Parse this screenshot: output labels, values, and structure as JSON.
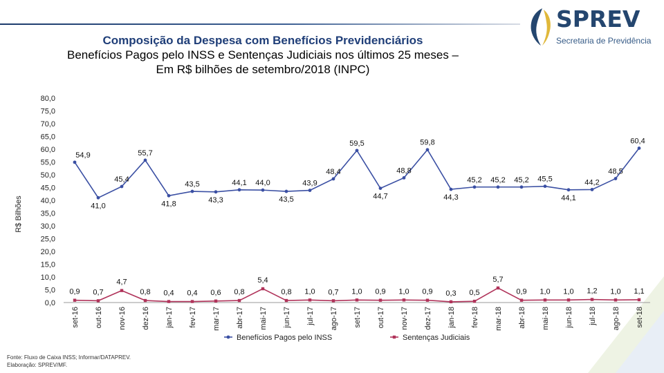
{
  "header": {
    "title_line1": "Composição da Despesa com Benefícios Previdenciários",
    "title_line2": "Benefícios Pagos pelo INSS e Sentenças Judiciais nos últimos 25 meses –",
    "title_line3": "Em R$ bilhões de setembro/2018 (INPC)"
  },
  "logo": {
    "wordmark": "SPREV",
    "subtitle": "Secretaria de Previdência"
  },
  "footer": {
    "source": "Fonte: Fluxo de Caixa INSS; Informar/DATAPREV.",
    "elaboration": "Elaboração: SPREV/MF."
  },
  "colors": {
    "series_inss": "#3a4fa3",
    "series_judicial": "#b0335a",
    "logo_dark": "#24466f",
    "logo_gold": "#e0b83a"
  },
  "chart_data": {
    "type": "line",
    "title": "",
    "ylabel": "R$ Bilhões",
    "xlabel": "",
    "ylim": [
      0,
      80
    ],
    "yticks": [
      "0,0",
      "5,0",
      "10,0",
      "15,0",
      "20,0",
      "25,0",
      "30,0",
      "35,0",
      "40,0",
      "45,0",
      "50,0",
      "55,0",
      "60,0",
      "65,0",
      "70,0",
      "75,0",
      "80,0"
    ],
    "grid": false,
    "legend_position": "bottom",
    "categories": [
      "set-16",
      "out-16",
      "nov-16",
      "dez-16",
      "jan-17",
      "fev-17",
      "mar-17",
      "abr-17",
      "mai-17",
      "jun-17",
      "jul-17",
      "ago-17",
      "set-17",
      "out-17",
      "nov-17",
      "dez-17",
      "jan-18",
      "fev-18",
      "mar-18",
      "abr-18",
      "mai-18",
      "jun-18",
      "jul-18",
      "ago-18",
      "set-18"
    ],
    "series": [
      {
        "name": "Benefícios Pagos pelo INSS",
        "values": [
          54.9,
          41.0,
          45.4,
          55.7,
          41.8,
          43.5,
          43.3,
          44.1,
          44.0,
          43.5,
          43.9,
          48.4,
          59.5,
          44.7,
          48.8,
          59.8,
          44.3,
          45.2,
          45.2,
          45.2,
          45.5,
          44.1,
          44.2,
          48.5,
          60.4
        ],
        "labels": [
          "54,9",
          "41,0",
          "45,4",
          "55,7",
          "41,8",
          "43,5",
          "43,3",
          "44,1",
          "44,0",
          "43,5",
          "43,9",
          "48,4",
          "59,5",
          "44,7",
          "48,8",
          "59,8",
          "44,3",
          "45,2",
          "45,2",
          "45,2",
          "45,5",
          "44,1",
          "44,2",
          "48,5",
          "60,4"
        ]
      },
      {
        "name": "Sentenças Judiciais",
        "values": [
          0.9,
          0.7,
          4.7,
          0.8,
          0.4,
          0.4,
          0.6,
          0.8,
          5.4,
          0.8,
          1.0,
          0.7,
          1.0,
          0.9,
          1.0,
          0.9,
          0.3,
          0.5,
          5.7,
          0.9,
          1.0,
          1.0,
          1.2,
          1.0,
          1.1
        ],
        "labels": [
          "0,9",
          "0,7",
          "4,7",
          "0,8",
          "0,4",
          "0,4",
          "0,6",
          "0,8",
          "5,4",
          "0,8",
          "1,0",
          "0,7",
          "1,0",
          "0,9",
          "1,0",
          "0,9",
          "0,3",
          "0,5",
          "5,7",
          "0,9",
          "1,0",
          "1,0",
          "1,2",
          "1,0",
          "1,1"
        ]
      }
    ]
  }
}
